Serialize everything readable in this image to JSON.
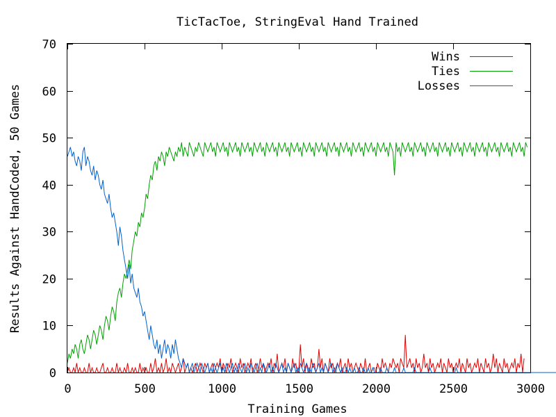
{
  "chart_data": {
    "type": "line",
    "title": "TicTacToe, StringEval Hand Trained",
    "xlabel": "Training Games",
    "ylabel": "Results Against HandCoded, 50 Games",
    "xlim": [
      0,
      3000
    ],
    "ylim": [
      0,
      70
    ],
    "x_ticks": [
      0,
      500,
      1000,
      1500,
      2000,
      2500,
      3000
    ],
    "y_ticks": [
      0,
      10,
      20,
      30,
      40,
      50,
      60,
      70
    ],
    "grid": false,
    "legend_position": "top-right",
    "x_step": 10,
    "series": [
      {
        "name": "Wins",
        "color": "#e00000",
        "values": [
          0,
          1,
          0,
          0,
          1,
          0,
          2,
          0,
          1,
          0,
          0,
          1,
          0,
          0,
          2,
          0,
          1,
          0,
          0,
          1,
          0,
          0,
          1,
          2,
          0,
          0,
          1,
          0,
          0,
          1,
          0,
          0,
          2,
          0,
          1,
          0,
          0,
          1,
          0,
          2,
          0,
          0,
          1,
          0,
          1,
          0,
          0,
          2,
          0,
          1,
          0,
          1,
          0,
          0,
          2,
          0,
          1,
          3,
          0,
          1,
          0,
          2,
          0,
          1,
          3,
          0,
          1,
          0,
          2,
          1,
          0,
          1,
          2,
          0,
          1,
          3,
          0,
          1,
          2,
          0,
          1,
          0,
          1,
          2,
          0,
          1,
          2,
          1,
          0,
          2,
          1,
          2,
          0,
          1,
          2,
          0,
          1,
          2,
          1,
          3,
          0,
          2,
          1,
          0,
          2,
          1,
          3,
          0,
          1,
          2,
          1,
          0,
          3,
          1,
          2,
          0,
          1,
          2,
          1,
          3,
          0,
          1,
          2,
          0,
          1,
          3,
          1,
          2,
          0,
          1,
          2,
          1,
          3,
          0,
          2,
          1,
          4,
          0,
          1,
          2,
          1,
          3,
          0,
          2,
          1,
          0,
          3,
          1,
          2,
          0,
          1,
          6,
          1,
          3,
          0,
          2,
          1,
          0,
          3,
          1,
          2,
          0,
          1,
          5,
          1,
          3,
          0,
          2,
          1,
          0,
          3,
          1,
          2,
          0,
          1,
          2,
          1,
          3,
          0,
          1,
          2,
          0,
          3,
          1,
          2,
          0,
          1,
          2,
          1,
          0,
          2,
          1,
          0,
          3,
          0,
          1,
          2,
          0,
          1,
          1,
          0,
          2,
          1,
          0,
          3,
          1,
          2,
          1,
          0,
          2,
          1,
          3,
          2,
          1,
          2,
          0,
          3,
          2,
          1,
          8,
          1,
          2,
          3,
          1,
          2,
          0,
          3,
          1,
          2,
          0,
          1,
          4,
          1,
          2,
          0,
          3,
          1,
          2,
          0,
          1,
          2,
          1,
          3,
          0,
          2,
          1,
          0,
          3,
          1,
          2,
          0,
          1,
          2,
          1,
          3,
          0,
          2,
          1,
          0,
          3,
          1,
          2,
          0,
          1,
          2,
          1,
          3,
          0,
          2,
          1,
          0,
          3,
          1,
          2,
          0,
          1,
          4,
          1,
          3,
          0,
          2,
          1,
          0,
          3,
          1,
          2,
          0,
          1,
          2,
          1,
          3,
          0,
          2,
          1,
          4,
          0,
          3
        ]
      },
      {
        "name": "Ties",
        "color": "#00a000",
        "values": [
          2,
          4,
          3,
          5,
          4,
          6,
          5,
          3,
          6,
          7,
          5,
          4,
          6,
          8,
          7,
          5,
          7,
          9,
          8,
          6,
          8,
          10,
          9,
          7,
          10,
          12,
          11,
          9,
          12,
          14,
          13,
          11,
          15,
          17,
          18,
          16,
          19,
          21,
          20,
          22,
          24,
          22,
          26,
          28,
          30,
          29,
          32,
          31,
          34,
          33,
          35,
          38,
          37,
          40,
          42,
          41,
          44,
          45,
          43,
          46,
          45,
          47,
          46,
          44,
          47,
          46,
          48,
          47,
          46,
          45,
          47,
          46,
          48,
          47,
          49,
          46,
          48,
          47,
          46,
          49,
          48,
          47,
          46,
          48,
          47,
          49,
          48,
          47,
          46,
          49,
          48,
          47,
          48,
          49,
          47,
          48,
          46,
          49,
          48,
          47,
          48,
          49,
          47,
          48,
          46,
          49,
          48,
          47,
          48,
          49,
          47,
          48,
          46,
          49,
          48,
          47,
          48,
          49,
          47,
          48,
          46,
          49,
          48,
          47,
          48,
          49,
          47,
          48,
          46,
          49,
          48,
          47,
          48,
          49,
          47,
          48,
          46,
          49,
          48,
          47,
          48,
          49,
          47,
          48,
          46,
          49,
          48,
          47,
          48,
          49,
          47,
          48,
          46,
          49,
          48,
          47,
          48,
          49,
          47,
          48,
          46,
          49,
          48,
          47,
          48,
          49,
          47,
          48,
          46,
          49,
          48,
          47,
          48,
          49,
          47,
          48,
          46,
          49,
          48,
          47,
          48,
          49,
          47,
          48,
          46,
          49,
          48,
          47,
          48,
          49,
          47,
          48,
          46,
          49,
          48,
          47,
          48,
          49,
          47,
          48,
          46,
          49,
          48,
          47,
          48,
          49,
          47,
          48,
          46,
          49,
          48,
          47,
          42,
          49,
          47,
          48,
          46,
          49,
          48,
          47,
          48,
          49,
          47,
          48,
          46,
          49,
          48,
          47,
          48,
          49,
          47,
          48,
          46,
          49,
          48,
          47,
          48,
          49,
          47,
          48,
          46,
          49,
          48,
          47,
          48,
          49,
          47,
          48,
          46,
          49,
          48,
          47,
          48,
          49,
          47,
          48,
          46,
          49,
          48,
          47,
          48,
          49,
          47,
          48,
          46,
          49,
          48,
          47,
          48,
          49,
          47,
          48,
          46,
          49,
          48,
          47,
          48,
          49,
          47,
          48,
          46,
          49,
          48,
          47,
          48,
          49,
          47,
          48,
          46,
          49,
          48,
          47,
          48,
          49,
          47,
          48,
          46,
          49,
          48
        ]
      },
      {
        "name": "Losses",
        "color": "#0060d0",
        "values": [
          46,
          47,
          48,
          46,
          47,
          45,
          44,
          46,
          45,
          43,
          47,
          48,
          44,
          46,
          45,
          43,
          42,
          44,
          41,
          43,
          42,
          40,
          39,
          41,
          38,
          37,
          36,
          38,
          35,
          33,
          34,
          32,
          30,
          27,
          31,
          29,
          26,
          24,
          22,
          20,
          23,
          19,
          21,
          18,
          17,
          16,
          18,
          15,
          14,
          12,
          13,
          11,
          9,
          7,
          10,
          8,
          6,
          5,
          7,
          4,
          6,
          3,
          5,
          7,
          4,
          6,
          5,
          3,
          6,
          4,
          7,
          5,
          3,
          2,
          1,
          3,
          2,
          1,
          2,
          0,
          1,
          2,
          0,
          1,
          2,
          1,
          0,
          2,
          1,
          0,
          1,
          2,
          0,
          1,
          0,
          2,
          1,
          0,
          1,
          2,
          0,
          1,
          0,
          2,
          1,
          0,
          1,
          2,
          0,
          1,
          0,
          2,
          1,
          0,
          1,
          2,
          0,
          1,
          0,
          2,
          1,
          0,
          1,
          2,
          0,
          1,
          0,
          2,
          1,
          0,
          1,
          2,
          0,
          1,
          0,
          2,
          1,
          0,
          1,
          2,
          0,
          1,
          0,
          2,
          1,
          0,
          1,
          2,
          0,
          1,
          0,
          2,
          1,
          0,
          1,
          2,
          0,
          1,
          0,
          2,
          1,
          0,
          1,
          2,
          0,
          1,
          0,
          2,
          1,
          0,
          1,
          2,
          0,
          1,
          0,
          2,
          1,
          0,
          1,
          0,
          0,
          1,
          0,
          1,
          0,
          0,
          1,
          0,
          0,
          1,
          0,
          0,
          1,
          0,
          0,
          1,
          0,
          0,
          1,
          0,
          0,
          0,
          0,
          1,
          0,
          0,
          0,
          1,
          0,
          0,
          0,
          0,
          1,
          0,
          0,
          0,
          0,
          0,
          1,
          0,
          0,
          0,
          0,
          0,
          0,
          1,
          0,
          0,
          0,
          0,
          0,
          0,
          0,
          0,
          0,
          1,
          0,
          0,
          0,
          0,
          0,
          0,
          0,
          0,
          0,
          0,
          0,
          0,
          0,
          0,
          0,
          0,
          1,
          0,
          0,
          0,
          0,
          0,
          0,
          0,
          0,
          0,
          0,
          0,
          0,
          0,
          0,
          0,
          0,
          0,
          0,
          0,
          0,
          0,
          0,
          0,
          0,
          0,
          0,
          0,
          0,
          0,
          0,
          0,
          0,
          0,
          0,
          0,
          0,
          0,
          0,
          0,
          0,
          0,
          0,
          0,
          0,
          0,
          0,
          0,
          0,
          0,
          0,
          0,
          0,
          0,
          0,
          0,
          0,
          0,
          0,
          0,
          0,
          0,
          0,
          0,
          0,
          0,
          0,
          0,
          0,
          0,
          0,
          0,
          0,
          0
        ]
      }
    ]
  }
}
